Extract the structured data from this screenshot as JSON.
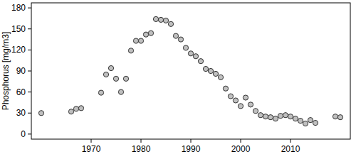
{
  "chart_data": {
    "type": "scatter",
    "y_label": "Phosphorus [mg/m3]",
    "x": [
      1960,
      1966,
      1967,
      1968,
      1972,
      1973,
      1974,
      1975,
      1976,
      1977,
      1978,
      1979,
      1980,
      1981,
      1982,
      1983,
      1984,
      1985,
      1986,
      1987,
      1988,
      1989,
      1990,
      1991,
      1992,
      1993,
      1994,
      1995,
      1996,
      1997,
      1998,
      1999,
      2000,
      2001,
      2002,
      2003,
      2004,
      2005,
      2006,
      2007,
      2008,
      2009,
      2010,
      2011,
      2012,
      2013,
      2014,
      2015,
      2019,
      2020
    ],
    "values": [
      30,
      32,
      36,
      37,
      59,
      85,
      94,
      79,
      60,
      79,
      119,
      133,
      133,
      142,
      144,
      164,
      163,
      162,
      157,
      140,
      135,
      123,
      115,
      111,
      104,
      93,
      90,
      86,
      81,
      65,
      54,
      48,
      40,
      52,
      42,
      33,
      27,
      25,
      24,
      22,
      26,
      27,
      25,
      22,
      19,
      15,
      20,
      16,
      25,
      24
    ],
    "color": "#c0c0c0",
    "marker": "circle",
    "xlim": [
      1958,
      2022
    ],
    "xticks": [
      1970,
      1980,
      1990,
      2000,
      2010
    ],
    "ylim": [
      -7.2,
      187.2
    ],
    "yticks": [
      0,
      30,
      60,
      90,
      120,
      150,
      180
    ],
    "grid": false
  }
}
